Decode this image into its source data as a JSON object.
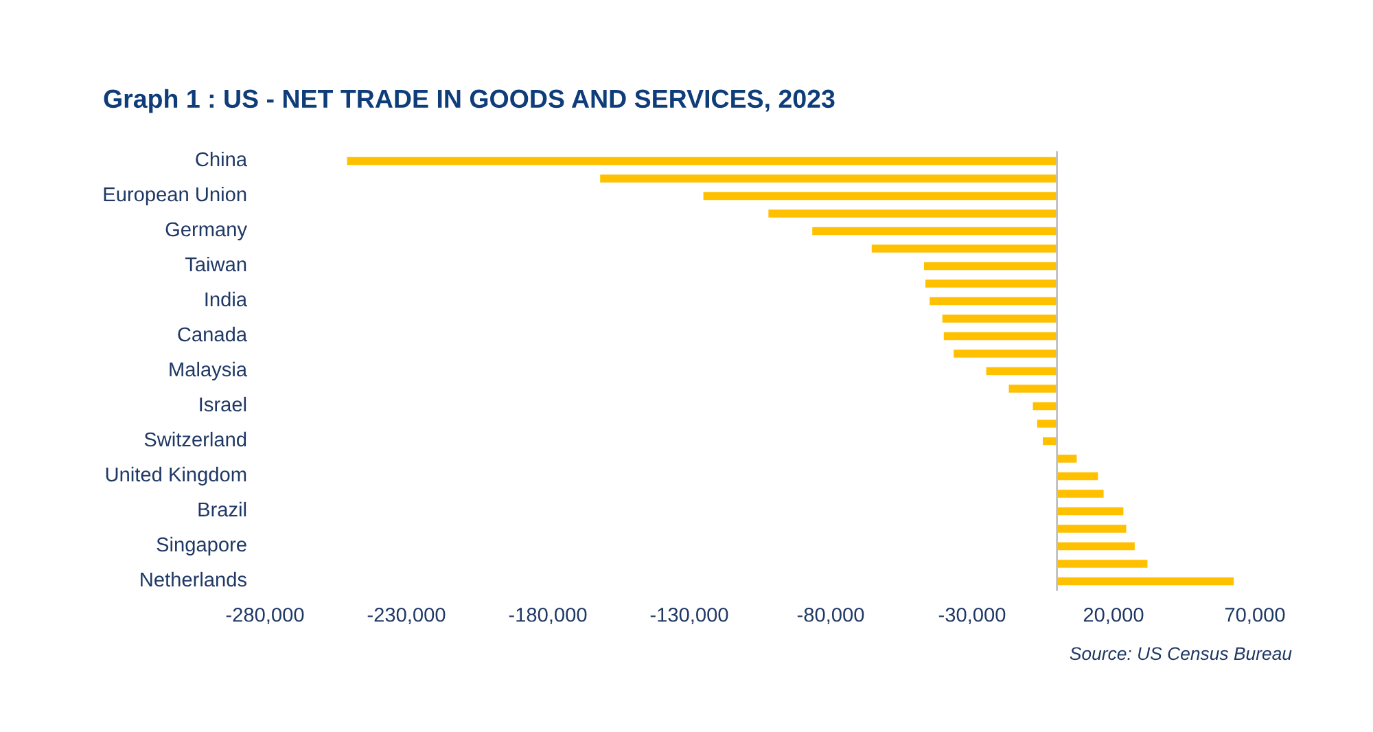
{
  "chart_data": {
    "type": "bar",
    "orientation": "horizontal",
    "title": "Graph 1 : US - NET TRADE IN GOODS AND SERVICES, 2023",
    "categories": [
      "China",
      null,
      "European Union",
      null,
      "Germany",
      null,
      "Taiwan",
      null,
      "India",
      null,
      "Canada",
      null,
      "Malaysia",
      null,
      "Israel",
      null,
      "Switzerland",
      null,
      "United Kingdom",
      null,
      "Brazil",
      null,
      "Singapore",
      null,
      "Netherlands"
    ],
    "values": [
      -251000,
      -161500,
      -125000,
      -102000,
      -86500,
      -65500,
      -47000,
      -46500,
      -45000,
      -40500,
      -40000,
      -36500,
      -25000,
      -17000,
      -8500,
      -7000,
      -5000,
      7000,
      14500,
      16500,
      23500,
      24500,
      27500,
      32000,
      62500
    ],
    "color": "#ffc000",
    "xlim": [
      -280000,
      70000
    ],
    "xticks": [
      {
        "value": -280000,
        "label": "-280,000"
      },
      {
        "value": -230000,
        "label": "-230,000"
      },
      {
        "value": -180000,
        "label": "-180,000"
      },
      {
        "value": -130000,
        "label": "-130,000"
      },
      {
        "value": -80000,
        "label": "-80,000"
      },
      {
        "value": -30000,
        "label": "-30,000"
      },
      {
        "value": 20000,
        "label": "20,000"
      },
      {
        "value": 70000,
        "label": "70,000"
      }
    ],
    "annotations": [
      "Source: US Census Bureau"
    ]
  }
}
